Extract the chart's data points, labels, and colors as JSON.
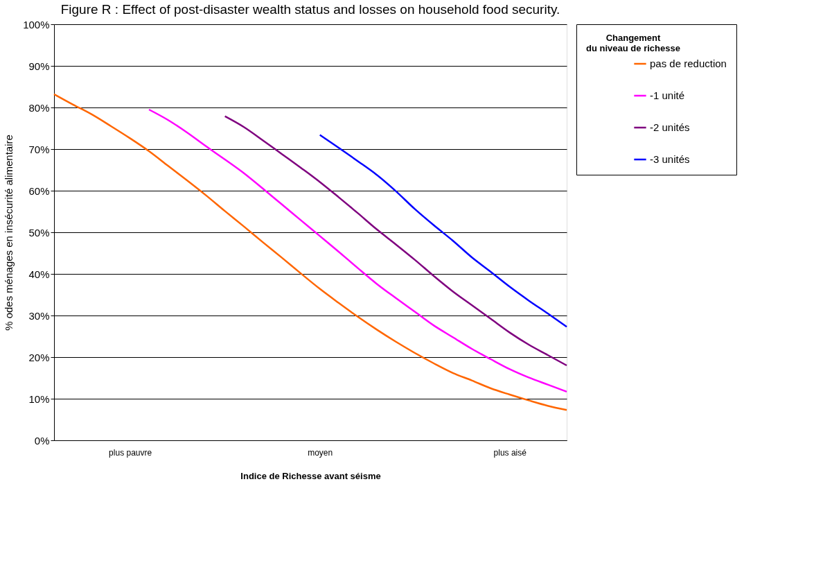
{
  "chart_data": {
    "type": "line",
    "title": "Figure R : Effect of post-disaster wealth status and losses on household food security.",
    "xlabel": "Indice de Richesse avant séisme",
    "ylabel": "% odes ménages en insécurité alimentaire",
    "legend_title": "Changement du niveau de richesse",
    "categories": [
      null,
      null,
      null,
      null,
      "plus pauvre",
      null,
      null,
      null,
      null,
      null,
      null,
      null,
      null,
      null,
      "moyen",
      null,
      null,
      null,
      null,
      null,
      null,
      null,
      null,
      null,
      "plus aisé",
      null,
      null,
      null
    ],
    "ylim": [
      0,
      100
    ],
    "yticks": [
      {
        "value": 0,
        "label": "0%"
      },
      {
        "value": 10,
        "label": "10%"
      },
      {
        "value": 20,
        "label": "20%"
      },
      {
        "value": 30,
        "label": "30%"
      },
      {
        "value": 40,
        "label": "40%"
      },
      {
        "value": 50,
        "label": "50%"
      },
      {
        "value": 60,
        "label": "60%"
      },
      {
        "value": 70,
        "label": "70%"
      },
      {
        "value": 80,
        "label": "80%"
      },
      {
        "value": 90,
        "label": "90%"
      },
      {
        "value": 100,
        "label": "100%"
      }
    ],
    "grid": "y",
    "legend": "right",
    "marker": "none",
    "line_style": "solid",
    "series": [
      {
        "name": "pas de reduction",
        "color": "#ff6600",
        "values": [
          83.2,
          80.7,
          78.3,
          75.5,
          72.6,
          69.5,
          66.0,
          62.5,
          58.9,
          55.1,
          51.4,
          47.6,
          43.9,
          40.1,
          36.4,
          33.0,
          29.7,
          26.6,
          23.7,
          21.0,
          18.5,
          16.2,
          14.4,
          12.5,
          11.0,
          9.6,
          8.3,
          7.3
        ]
      },
      {
        "name": "-1 unité",
        "color": "#ff00ff",
        "values": [
          null,
          null,
          null,
          null,
          null,
          79.5,
          77.0,
          74.0,
          70.7,
          67.5,
          64.2,
          60.5,
          56.7,
          52.9,
          49.1,
          45.3,
          41.4,
          37.6,
          34.2,
          30.9,
          27.6,
          24.8,
          22.0,
          19.5,
          17.1,
          15.1,
          13.4,
          11.7
        ]
      },
      {
        "name": "-2 unités",
        "color": "#7f007f",
        "values": [
          null,
          null,
          null,
          null,
          null,
          null,
          null,
          null,
          null,
          77.9,
          75.3,
          72.1,
          68.8,
          65.5,
          62.1,
          58.4,
          54.6,
          50.7,
          47.1,
          43.4,
          39.5,
          35.8,
          32.5,
          29.2,
          25.9,
          23.0,
          20.5,
          18.0
        ]
      },
      {
        "name": "-3 unités",
        "color": "#0000ff",
        "values": [
          null,
          null,
          null,
          null,
          null,
          null,
          null,
          null,
          null,
          null,
          null,
          null,
          null,
          null,
          73.4,
          70.3,
          67.1,
          63.8,
          59.9,
          55.6,
          51.7,
          48.0,
          44.0,
          40.5,
          36.9,
          33.6,
          30.5,
          27.3
        ]
      }
    ]
  }
}
